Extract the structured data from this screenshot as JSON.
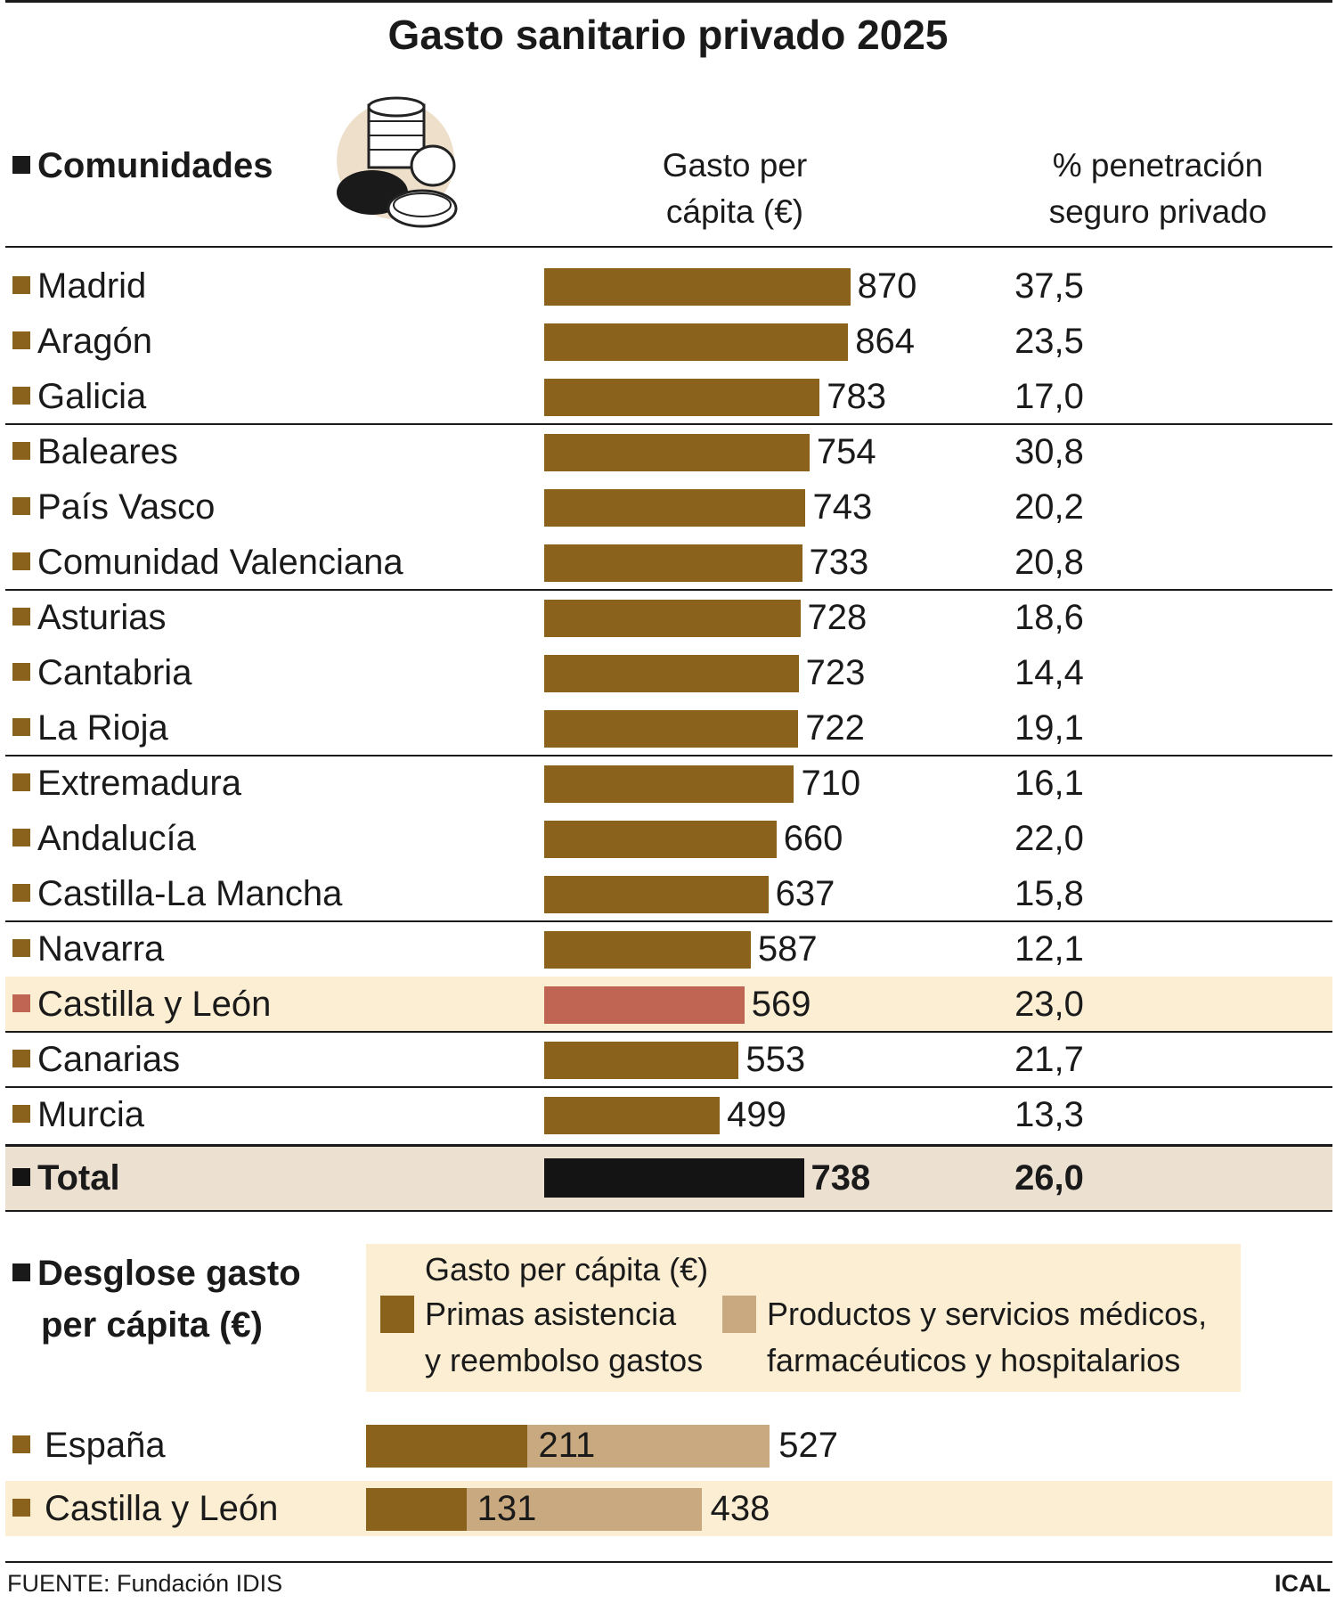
{
  "title": "Gasto sanitario privado 2025",
  "header": {
    "region_label": "Comunidades",
    "col_gasto_line1": "Gasto per",
    "col_gasto_line2": "cápita (€)",
    "col_pct_line1": "% penetración",
    "col_pct_line2": "seguro privado"
  },
  "colors": {
    "bar": "#8b621c",
    "highlight_bar": "#c06454",
    "total_bar": "#141414",
    "light_segment": "#c9aa80",
    "highlight_row_bg": "#fbeed3",
    "total_row_bg": "#ece0d1"
  },
  "chart_data": [
    {
      "type": "bar",
      "orientation": "horizontal",
      "title": "Gasto sanitario privado 2025",
      "xlabel": "Gasto per cápita (€)",
      "categories": [
        "Madrid",
        "Aragón",
        "Galicia",
        "Baleares",
        "País Vasco",
        "Comunidad Valenciana",
        "Asturias",
        "Cantabria",
        "La Rioja",
        "Extremadura",
        "Andalucía",
        "Castilla-La Mancha",
        "Navarra",
        "Castilla y León",
        "Canarias",
        "Murcia",
        "Total"
      ],
      "values": [
        870,
        864,
        783,
        754,
        743,
        733,
        728,
        723,
        722,
        710,
        660,
        637,
        587,
        569,
        553,
        499,
        738
      ],
      "value_labels": [
        "870",
        "864",
        "783",
        "754",
        "743",
        "733",
        "728",
        "723",
        "722",
        "710",
        "660",
        "637",
        "587",
        "569",
        "553",
        "499",
        "738"
      ],
      "penetracion_seguro_privado": [
        "37,5",
        "23,5",
        "17,0",
        "30,8",
        "20,2",
        "20,8",
        "18,6",
        "14,4",
        "19,1",
        "16,1",
        "22,0",
        "15,8",
        "12,1",
        "23,0",
        "21,7",
        "13,3",
        "26,0"
      ],
      "highlight": "Castilla y León",
      "total_label": "Total",
      "group_separators_after": [
        2,
        5,
        8,
        11,
        13,
        14
      ]
    },
    {
      "type": "bar",
      "orientation": "horizontal",
      "stacked": true,
      "title": "Desglose gasto per cápita (€)",
      "legend_title": "Gasto per cápita (€)",
      "categories": [
        "España",
        "Castilla y León"
      ],
      "series": [
        {
          "name": "Primas asistencia y reembolso gastos",
          "values": [
            211,
            131
          ]
        },
        {
          "name": "Productos y servicios médicos, farmacéuticos y hospitalarios",
          "values": [
            316,
            307
          ]
        }
      ],
      "totals": [
        527,
        438
      ],
      "inner_labels": [
        "211",
        "131"
      ],
      "total_labels": [
        "527",
        "438"
      ]
    }
  ],
  "desglose": {
    "heading_line1": "Desglose gasto",
    "heading_line2": "per cápita (€)",
    "legend_title": "Gasto per cápita (€)",
    "legend_a_line1": "Primas asistencia",
    "legend_a_line2": "y reembolso gastos",
    "legend_b_line1": "Productos y servicios médicos,",
    "legend_b_line2": "farmacéuticos y hospitalarios"
  },
  "footer": {
    "source": "FUENTE: Fundación IDIS",
    "credit": "ICAL"
  }
}
